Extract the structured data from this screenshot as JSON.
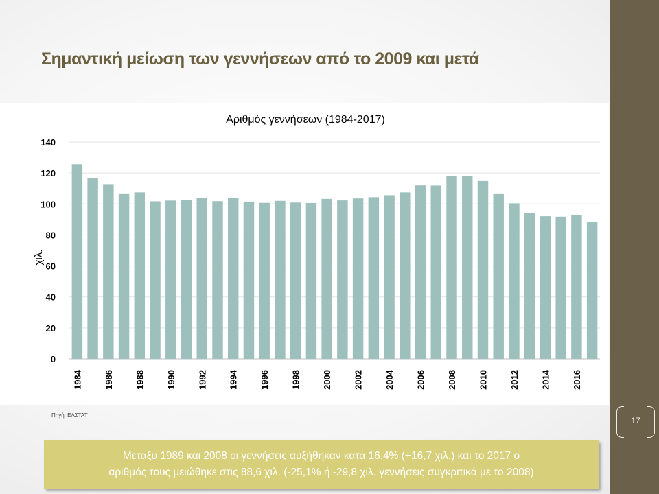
{
  "slide": {
    "title": "Σημαντική μείωση των γεννήσεων από το 2009 και μετά",
    "source": "Πηγή: ΕΛΣΤΑΤ",
    "page_number": "17",
    "callout_line1": "Μεταξύ 1989 και 2008 οι γεννήσεις αυξήθηκαν κατά 16,4% (+16,7 χιλ.) και το 2017 ο",
    "callout_line2": "αριθμός τους μειώθηκε στις 88,6 χιλ. (-25,1% ή -29,8 χιλ. γεννήσεις συγκριτικά με το 2008)"
  },
  "colors": {
    "sidebar": "#6b604a",
    "title": "#6a6040",
    "bar": "#9dc0bc",
    "callout": "#d8cf7a"
  },
  "chart_data": {
    "type": "bar",
    "title": "Αριθμός γεννήσεων  (1984-2017)",
    "xlabel": "",
    "ylabel": "χιλ.",
    "ylim": [
      0,
      140
    ],
    "yticks": [
      0,
      20,
      40,
      60,
      80,
      100,
      120,
      140
    ],
    "grid": true,
    "legend": "none",
    "categories": [
      "1984",
      "1985",
      "1986",
      "1987",
      "1988",
      "1989",
      "1990",
      "1991",
      "1992",
      "1993",
      "1994",
      "1995",
      "1996",
      "1997",
      "1998",
      "1999",
      "2000",
      "2001",
      "2002",
      "2003",
      "2004",
      "2005",
      "2006",
      "2007",
      "2008",
      "2009",
      "2010",
      "2011",
      "2012",
      "2013",
      "2014",
      "2015",
      "2016",
      "2017"
    ],
    "xtick_labels": [
      "1984",
      "",
      "1986",
      "",
      "1988",
      "",
      "1990",
      "",
      "1992",
      "",
      "1994",
      "",
      "1996",
      "",
      "1998",
      "",
      "2000",
      "",
      "2002",
      "",
      "2004",
      "",
      "2006",
      "",
      "2008",
      "",
      "2010",
      "",
      "2012",
      "",
      "2014",
      "",
      "2016",
      ""
    ],
    "values": [
      125.7,
      116.5,
      112.8,
      106.4,
      107.5,
      101.7,
      102.2,
      102.6,
      104.1,
      101.8,
      103.8,
      101.5,
      100.7,
      102.0,
      100.9,
      100.6,
      103.3,
      102.3,
      103.6,
      104.4,
      105.7,
      107.5,
      112.0,
      111.9,
      118.3,
      117.9,
      114.8,
      106.4,
      100.4,
      94.1,
      92.1,
      91.8,
      92.9,
      88.6
    ]
  }
}
